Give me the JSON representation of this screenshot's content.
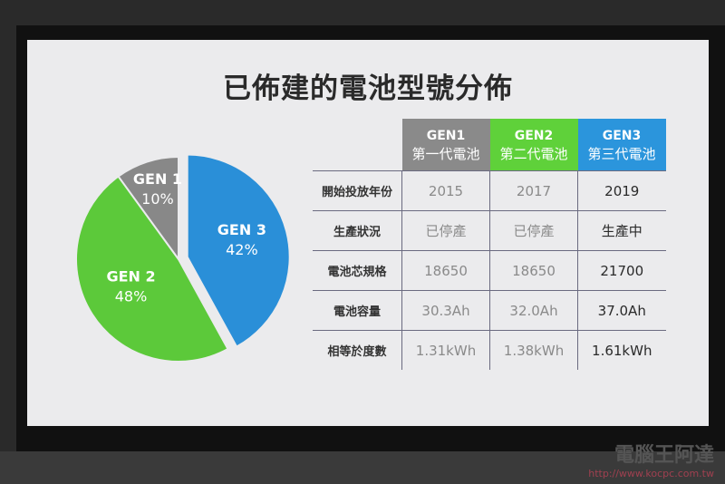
{
  "title": "已佈建的電池型號分佈",
  "chart_data": {
    "type": "pie",
    "slices": [
      {
        "name": "GEN 3",
        "value": 42,
        "label": "42%",
        "color": "#2a8fd8",
        "exploded": true
      },
      {
        "name": "GEN 2",
        "value": 48,
        "label": "48%",
        "color": "#5cc93a"
      },
      {
        "name": "GEN 1",
        "value": 10,
        "label": "10%",
        "color": "#888888"
      }
    ]
  },
  "table": {
    "headers": [
      {
        "code": "GEN1",
        "name": "第一代電池",
        "color": "#8a8a8a"
      },
      {
        "code": "GEN2",
        "name": "第二代電池",
        "color": "#5fd13a"
      },
      {
        "code": "GEN3",
        "name": "第三代電池",
        "color": "#2b95dc"
      }
    ],
    "rows": [
      {
        "label": "開始投放年份",
        "values": [
          "2015",
          "2017",
          "2019"
        ]
      },
      {
        "label": "生產狀況",
        "values": [
          "已停產",
          "已停產",
          "生產中"
        ]
      },
      {
        "label": "電池芯規格",
        "values": [
          "18650",
          "18650",
          "21700"
        ]
      },
      {
        "label": "電池容量",
        "values": [
          "30.3Ah",
          "32.0Ah",
          "37.0Ah"
        ]
      },
      {
        "label": "相等於度數",
        "values": [
          "1.31kWh",
          "1.38kWh",
          "1.61kWh"
        ]
      }
    ]
  },
  "watermark": {
    "name": "電腦王阿達",
    "url": "http://www.kocpc.com.tw"
  }
}
